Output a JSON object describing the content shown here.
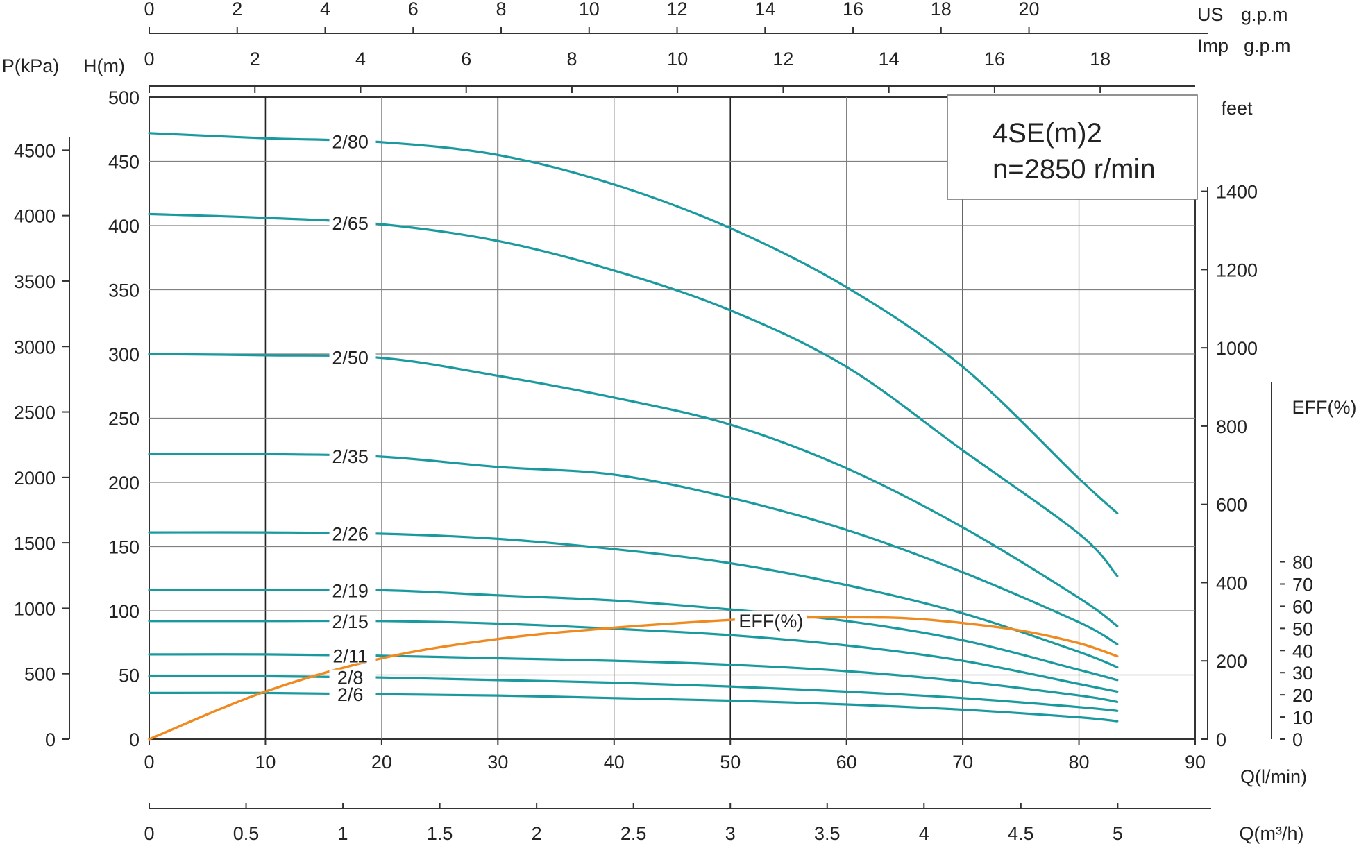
{
  "chart_data": {
    "type": "line",
    "title": "4SE(m)2",
    "subtitle": "n=2850 r/min",
    "x": {
      "label": "Q(l/min)",
      "range": [
        0,
        90
      ],
      "ticks": [
        0,
        10,
        20,
        30,
        40,
        50,
        60,
        70,
        80,
        90
      ]
    },
    "y": {
      "label": "H(m)",
      "range": [
        0,
        500
      ],
      "ticks": [
        0,
        50,
        100,
        150,
        200,
        250,
        300,
        350,
        400,
        450,
        500
      ]
    },
    "top_axes": [
      {
        "label": "US g.p.m",
        "ticks": [
          0,
          2,
          4,
          6,
          8,
          10,
          12,
          14,
          16,
          18,
          20
        ]
      },
      {
        "label": "Imp g.p.m",
        "ticks": [
          0,
          2,
          4,
          6,
          8,
          10,
          12,
          14,
          16,
          18
        ]
      }
    ],
    "bottom_axis": {
      "label": "Q(m³/h)",
      "ticks": [
        "0",
        "0.5",
        "1",
        "1.5",
        "2",
        "2.5",
        "3",
        "3.5",
        "4",
        "4.5",
        "5"
      ]
    },
    "left_axis": {
      "label": "P(kPa)",
      "ticks": [
        0,
        500,
        1000,
        1500,
        2000,
        2500,
        3000,
        3500,
        4000,
        4500
      ]
    },
    "right_axes": [
      {
        "label": "feet",
        "ticks": [
          0,
          200,
          400,
          600,
          800,
          1000,
          1200,
          1400
        ]
      },
      {
        "label": "EFF(%)",
        "ticks": [
          0,
          10,
          20,
          30,
          40,
          50,
          60,
          70,
          80
        ]
      }
    ],
    "grid": true,
    "series_color": "#1a9a9e",
    "efficiency_color": "#ee8a1f",
    "series": [
      {
        "name": "2/80",
        "x": [
          0,
          10,
          20,
          30,
          40,
          50,
          60,
          70,
          80,
          83.3
        ],
        "values": [
          472,
          468,
          465,
          455,
          432,
          398,
          352,
          290,
          203,
          176
        ]
      },
      {
        "name": "2/65",
        "x": [
          0,
          10,
          20,
          30,
          40,
          50,
          60,
          70,
          80,
          83.3
        ],
        "values": [
          409,
          406,
          401,
          388,
          365,
          334,
          290,
          225,
          160,
          127
        ]
      },
      {
        "name": "2/50",
        "x": [
          0,
          10,
          20,
          30,
          40,
          50,
          60,
          70,
          80,
          83.3
        ],
        "values": [
          300,
          299,
          297,
          283,
          266,
          245,
          211,
          165,
          110,
          88
        ]
      },
      {
        "name": "2/35",
        "x": [
          0,
          10,
          20,
          30,
          40,
          50,
          60,
          70,
          80,
          83.3
        ],
        "values": [
          222,
          222,
          220,
          212,
          206,
          188,
          163,
          130,
          91,
          74
        ]
      },
      {
        "name": "2/26",
        "x": [
          0,
          10,
          20,
          30,
          40,
          50,
          60,
          70,
          80,
          83.3
        ],
        "values": [
          161,
          161,
          160,
          156,
          148,
          137,
          120,
          98,
          68,
          56
        ]
      },
      {
        "name": "2/19",
        "x": [
          0,
          10,
          20,
          30,
          40,
          50,
          60,
          70,
          80,
          83.3
        ],
        "values": [
          116,
          116,
          116,
          112,
          108,
          101,
          92,
          77,
          54,
          46
        ]
      },
      {
        "name": "2/15",
        "x": [
          0,
          10,
          20,
          30,
          40,
          50,
          60,
          70,
          80,
          83.3
        ],
        "values": [
          92,
          92,
          92,
          90,
          86,
          81,
          73,
          61,
          43,
          37
        ]
      },
      {
        "name": "2/11",
        "x": [
          0,
          10,
          20,
          30,
          40,
          50,
          60,
          70,
          80,
          83.3
        ],
        "values": [
          66,
          66,
          65,
          63,
          61,
          58,
          53,
          45,
          34,
          29
        ]
      },
      {
        "name": "2/8",
        "x": [
          0,
          10,
          20,
          30,
          40,
          50,
          60,
          70,
          80,
          83.3
        ],
        "values": [
          49,
          49,
          48,
          46,
          44,
          41,
          37,
          32,
          25,
          22
        ]
      },
      {
        "name": "2/6",
        "x": [
          0,
          10,
          20,
          30,
          40,
          50,
          60,
          70,
          80,
          83.3
        ],
        "values": [
          36,
          36,
          35,
          34,
          32,
          30,
          27,
          23,
          17,
          14
        ]
      }
    ],
    "efficiency": {
      "label": "EFF(%)",
      "x": [
        0,
        10,
        20,
        30,
        40,
        50,
        55,
        60,
        65,
        70,
        75,
        80,
        83.3
      ],
      "values": [
        0,
        21.5,
        36.5,
        45.2,
        50.3,
        53.8,
        54.8,
        55.0,
        54.6,
        52.4,
        49.0,
        43.3,
        37.4
      ]
    }
  }
}
